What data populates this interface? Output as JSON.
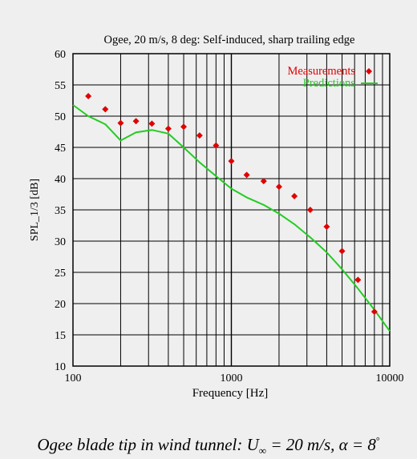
{
  "chart_data": {
    "type": "scatter+line",
    "title": "Ogee, 20 m/s, 8 deg: Self-induced, sharp trailing edge",
    "xlabel": "Frequency [Hz]",
    "ylabel": "SPL_1/3 [dB]",
    "xscale": "log",
    "xlim": [
      100,
      10000
    ],
    "ylim": [
      10,
      60
    ],
    "x_ticks": [
      100,
      1000,
      10000
    ],
    "x_tick_labels": [
      "100",
      "1000",
      "10000"
    ],
    "y_ticks": [
      10,
      15,
      20,
      25,
      30,
      35,
      40,
      45,
      50,
      55,
      60
    ],
    "y_tick_labels": [
      "10",
      "15",
      "20",
      "25",
      "30",
      "35",
      "40",
      "45",
      "50",
      "55",
      "60"
    ],
    "grid": true,
    "legend_position": "top-right",
    "series": [
      {
        "name": "Measurements",
        "kind": "scatter",
        "marker": "diamond",
        "color": "#e00000",
        "points": [
          [
            125,
            53.2
          ],
          [
            160,
            51.1
          ],
          [
            200,
            48.9
          ],
          [
            250,
            49.2
          ],
          [
            315,
            48.8
          ],
          [
            400,
            48.0
          ],
          [
            500,
            48.3
          ],
          [
            630,
            46.9
          ],
          [
            800,
            45.3
          ],
          [
            1000,
            42.8
          ],
          [
            1250,
            40.6
          ],
          [
            1600,
            39.6
          ],
          [
            2000,
            38.7
          ],
          [
            2500,
            37.2
          ],
          [
            3150,
            35.0
          ],
          [
            4000,
            32.3
          ],
          [
            5000,
            28.4
          ],
          [
            6300,
            23.8
          ],
          [
            8000,
            18.7
          ]
        ]
      },
      {
        "name": "Predictions",
        "kind": "line",
        "color": "#22cc22",
        "points": [
          [
            100,
            51.8
          ],
          [
            125,
            50.0
          ],
          [
            160,
            48.7
          ],
          [
            200,
            46.1
          ],
          [
            250,
            47.4
          ],
          [
            315,
            47.8
          ],
          [
            400,
            47.2
          ],
          [
            500,
            45.0
          ],
          [
            630,
            42.6
          ],
          [
            800,
            40.4
          ],
          [
            1000,
            38.4
          ],
          [
            1250,
            37.0
          ],
          [
            1600,
            35.8
          ],
          [
            2000,
            34.4
          ],
          [
            2500,
            32.7
          ],
          [
            3150,
            30.6
          ],
          [
            4000,
            28.2
          ],
          [
            5000,
            25.5
          ],
          [
            6300,
            22.4
          ],
          [
            8000,
            19.0
          ],
          [
            10000,
            15.6
          ]
        ]
      }
    ]
  },
  "caption": {
    "prefix": "Ogee blade tip in wind tunnel:",
    "u_symbol": "U",
    "u_subscript": "∞",
    "u_value": "= 20 m/s,",
    "alpha_text": "α = 8",
    "degree": "°"
  }
}
